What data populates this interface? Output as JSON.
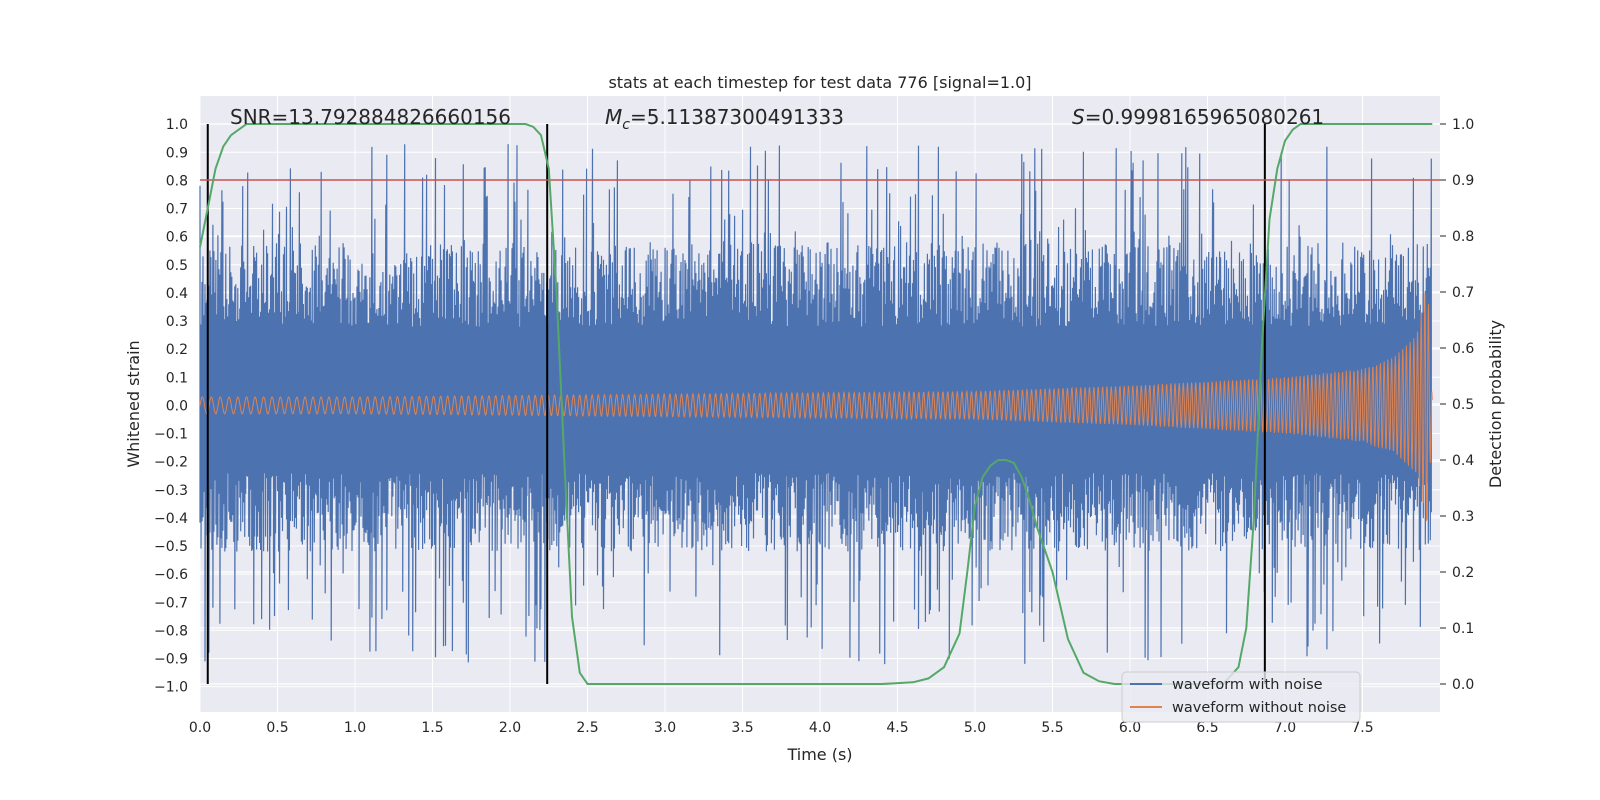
{
  "chart_data": {
    "type": "line",
    "title": "stats at each timestep for test data 776 [signal=1.0]",
    "xlabel": "Time (s)",
    "ylabel_left": "Whitened strain",
    "ylabel_right": "Detection probability",
    "xlim": [
      0.0,
      8.0
    ],
    "ylim_left": [
      -1.09,
      1.1
    ],
    "ylim_right": [
      -0.05,
      1.05
    ],
    "x_ticks": [
      0.0,
      0.5,
      1.0,
      1.5,
      2.0,
      2.5,
      3.0,
      3.5,
      4.0,
      4.5,
      5.0,
      5.5,
      6.0,
      6.5,
      7.0,
      7.5
    ],
    "x_tick_labels": [
      "0.0",
      "0.5",
      "1.0",
      "1.5",
      "2.0",
      "2.5",
      "3.0",
      "3.5",
      "4.0",
      "4.5",
      "5.0",
      "5.5",
      "6.0",
      "6.5",
      "7.0",
      "7.5"
    ],
    "y_left_ticks": [
      1.0,
      0.9,
      0.8,
      0.7,
      0.6,
      0.5,
      0.4,
      0.3,
      0.2,
      0.1,
      0.0,
      -0.1,
      -0.2,
      -0.3,
      -0.4,
      -0.5,
      -0.6,
      -0.7,
      -0.8,
      -0.9,
      -1.0
    ],
    "y_left_tick_labels": [
      "1.0",
      "0.9",
      "0.8",
      "0.7",
      "0.6",
      "0.5",
      "0.4",
      "0.3",
      "0.2",
      "0.1",
      "0.0",
      "−0.1",
      "−0.2",
      "−0.3",
      "−0.4",
      "−0.5",
      "−0.6",
      "−0.7",
      "−0.8",
      "−0.9",
      "−1.0"
    ],
    "y_right_ticks": [
      1.0,
      0.9,
      0.8,
      0.7,
      0.6,
      0.5,
      0.4,
      0.3,
      0.2,
      0.1,
      0.0
    ],
    "y_right_tick_labels": [
      "1.0",
      "0.9",
      "0.8",
      "0.7",
      "0.6",
      "0.5",
      "0.4",
      "0.3",
      "0.2",
      "0.1",
      "0.0"
    ],
    "annotations": {
      "snr": "SNR=13.792884826660156",
      "mc_symbol": "M",
      "mc_sub": "c",
      "mc_value": "=5.11387300491333",
      "s_symbol": "S",
      "s_value": "=0.9998165965080261"
    },
    "threshold": {
      "axis": "right",
      "value": 0.9,
      "color": "#c44e52"
    },
    "vertical_markers_x": [
      0.05,
      2.24,
      6.87
    ],
    "series": [
      {
        "name": "waveform with noise",
        "color": "#4c72b0",
        "axis": "left",
        "description_of_values": "noisy whitened strain, roughly uniform amplitude approx ±0.5 with spikes to ±0.95 across 0–8 s",
        "envelope_upper_approx": 0.55,
        "envelope_lower_approx": -0.5,
        "peak_max_approx": 0.97,
        "peak_min_approx": -0.95
      },
      {
        "name": "waveform without noise",
        "color": "#dd8452",
        "axis": "left",
        "description_of_values": "chirp signal with amplitude growing from about 0.03 at t=0 to about 0.45 near t=7.9 s, then ending",
        "amplitude_t": [
          0.0,
          1.0,
          2.0,
          3.0,
          4.0,
          5.0,
          6.0,
          6.5,
          7.0,
          7.5,
          7.7,
          7.85,
          7.92,
          7.95
        ],
        "amplitude": [
          0.03,
          0.03,
          0.035,
          0.04,
          0.045,
          0.05,
          0.07,
          0.085,
          0.1,
          0.13,
          0.17,
          0.25,
          0.45,
          0.02
        ]
      },
      {
        "name": "Detection probability",
        "color": "#55a868",
        "axis": "right",
        "x": [
          0.0,
          0.05,
          0.1,
          0.15,
          0.2,
          0.25,
          0.3,
          0.4,
          0.5,
          0.8,
          1.0,
          1.5,
          2.0,
          2.1,
          2.15,
          2.2,
          2.25,
          2.3,
          2.35,
          2.4,
          2.45,
          2.5,
          2.8,
          3.5,
          4.0,
          4.4,
          4.6,
          4.7,
          4.8,
          4.9,
          4.95,
          5.0,
          5.05,
          5.1,
          5.15,
          5.2,
          5.25,
          5.3,
          5.35,
          5.4,
          5.5,
          5.6,
          5.7,
          5.8,
          5.9,
          6.0,
          6.3,
          6.6,
          6.7,
          6.75,
          6.8,
          6.85,
          6.9,
          6.95,
          7.0,
          7.05,
          7.1,
          7.2,
          7.5,
          7.95
        ],
        "y": [
          0.78,
          0.85,
          0.92,
          0.96,
          0.98,
          0.99,
          1.0,
          1.0,
          1.0,
          1.0,
          1.0,
          1.0,
          1.0,
          1.0,
          0.995,
          0.98,
          0.92,
          0.7,
          0.4,
          0.12,
          0.02,
          0.0,
          0.0,
          0.0,
          0.0,
          0.0,
          0.003,
          0.01,
          0.03,
          0.09,
          0.2,
          0.32,
          0.37,
          0.39,
          0.4,
          0.4,
          0.395,
          0.37,
          0.33,
          0.28,
          0.2,
          0.08,
          0.02,
          0.005,
          0.0,
          0.0,
          0.0,
          0.0,
          0.03,
          0.1,
          0.3,
          0.6,
          0.83,
          0.92,
          0.97,
          0.99,
          1.0,
          1.0,
          1.0,
          1.0
        ]
      }
    ],
    "legend": {
      "placement": "lower-right",
      "entries": [
        {
          "label": "waveform with noise",
          "color": "#4c72b0"
        },
        {
          "label": "waveform without noise",
          "color": "#dd8452"
        }
      ]
    },
    "grid": true,
    "style": {
      "axes_bg": "#eaeaf2",
      "grid_color": "#ffffff",
      "text_color": "#262626",
      "marker_color": "#000000"
    }
  }
}
